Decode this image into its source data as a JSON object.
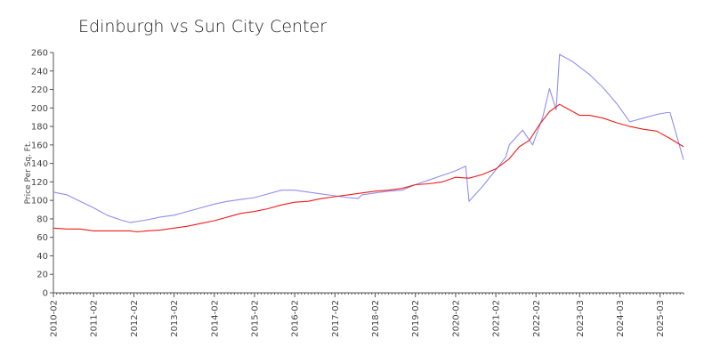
{
  "chart_data": {
    "type": "line",
    "title": "Edinburgh vs Sun City Center",
    "xlabel": "",
    "ylabel": "Price Per Sq. Ft.",
    "ylim": [
      0,
      260
    ],
    "y_ticks": [
      0,
      20,
      40,
      60,
      80,
      100,
      120,
      140,
      160,
      180,
      200,
      220,
      240,
      260
    ],
    "x_tick_labels": [
      "2010-02",
      "2011-02",
      "2012-02",
      "2013-02",
      "2014-02",
      "2015-02",
      "2016-02",
      "2017-02",
      "2018-02",
      "2019-02",
      "2020-02",
      "2021-02",
      "2022-02",
      "2023-03",
      "2024-03",
      "2025-03"
    ],
    "grid": false,
    "legend": "none",
    "series": [
      {
        "color": "#8f8ff0",
        "points": [
          [
            "2010-02",
            109
          ],
          [
            "2010-06",
            106
          ],
          [
            "2010-10",
            99
          ],
          [
            "2011-02",
            92
          ],
          [
            "2011-06",
            84
          ],
          [
            "2011-10",
            79
          ],
          [
            "2012-01",
            76
          ],
          [
            "2012-06",
            79
          ],
          [
            "2012-10",
            82
          ],
          [
            "2013-02",
            84
          ],
          [
            "2013-06",
            88
          ],
          [
            "2013-10",
            92
          ],
          [
            "2014-02",
            96
          ],
          [
            "2014-06",
            99
          ],
          [
            "2014-10",
            101
          ],
          [
            "2015-02",
            103
          ],
          [
            "2015-06",
            107
          ],
          [
            "2015-10",
            111
          ],
          [
            "2016-02",
            111
          ],
          [
            "2016-06",
            109
          ],
          [
            "2016-10",
            107
          ],
          [
            "2017-02",
            105
          ],
          [
            "2017-06",
            103
          ],
          [
            "2017-09",
            102
          ],
          [
            "2017-10",
            106
          ],
          [
            "2018-02",
            108
          ],
          [
            "2018-06",
            110
          ],
          [
            "2018-10",
            111
          ],
          [
            "2019-02",
            117
          ],
          [
            "2019-06",
            122
          ],
          [
            "2019-10",
            127
          ],
          [
            "2020-02",
            132
          ],
          [
            "2020-05",
            137
          ],
          [
            "2020-06",
            99
          ],
          [
            "2020-10",
            115
          ],
          [
            "2021-02",
            133
          ],
          [
            "2021-05",
            147
          ],
          [
            "2021-06",
            160
          ],
          [
            "2021-10",
            176
          ],
          [
            "2022-01",
            160
          ],
          [
            "2022-04",
            190
          ],
          [
            "2022-06",
            221
          ],
          [
            "2022-08",
            198
          ],
          [
            "2022-09",
            258
          ],
          [
            "2023-01",
            250
          ],
          [
            "2023-06",
            236
          ],
          [
            "2023-10",
            222
          ],
          [
            "2024-02",
            205
          ],
          [
            "2024-06",
            185
          ],
          [
            "2024-10",
            189
          ],
          [
            "2025-02",
            193
          ],
          [
            "2025-05",
            195
          ],
          [
            "2025-06",
            195
          ],
          [
            "2025-10",
            144
          ]
        ]
      },
      {
        "color": "#ee1c1c",
        "points": [
          [
            "2010-02",
            70
          ],
          [
            "2010-06",
            69
          ],
          [
            "2010-10",
            69
          ],
          [
            "2011-02",
            67
          ],
          [
            "2011-06",
            67
          ],
          [
            "2011-10",
            67
          ],
          [
            "2012-01",
            67
          ],
          [
            "2012-03",
            66
          ],
          [
            "2012-06",
            67
          ],
          [
            "2012-10",
            68
          ],
          [
            "2013-02",
            70
          ],
          [
            "2013-06",
            72
          ],
          [
            "2013-10",
            75
          ],
          [
            "2014-02",
            78
          ],
          [
            "2014-06",
            82
          ],
          [
            "2014-10",
            86
          ],
          [
            "2015-02",
            88
          ],
          [
            "2015-06",
            91
          ],
          [
            "2015-10",
            95
          ],
          [
            "2016-02",
            98
          ],
          [
            "2016-06",
            99
          ],
          [
            "2016-10",
            102
          ],
          [
            "2017-02",
            104
          ],
          [
            "2017-06",
            106
          ],
          [
            "2017-10",
            108
          ],
          [
            "2018-02",
            110
          ],
          [
            "2018-06",
            111
          ],
          [
            "2018-10",
            113
          ],
          [
            "2019-02",
            117
          ],
          [
            "2019-06",
            118
          ],
          [
            "2019-10",
            120
          ],
          [
            "2020-02",
            125
          ],
          [
            "2020-06",
            124
          ],
          [
            "2020-10",
            128
          ],
          [
            "2021-02",
            134
          ],
          [
            "2021-06",
            145
          ],
          [
            "2021-09",
            158
          ],
          [
            "2021-12",
            165
          ],
          [
            "2022-03",
            182
          ],
          [
            "2022-06",
            196
          ],
          [
            "2022-09",
            204
          ],
          [
            "2022-12",
            198
          ],
          [
            "2023-03",
            192
          ],
          [
            "2023-06",
            192
          ],
          [
            "2023-10",
            189
          ],
          [
            "2024-02",
            184
          ],
          [
            "2024-06",
            180
          ],
          [
            "2024-10",
            177
          ],
          [
            "2025-02",
            175
          ],
          [
            "2025-06",
            167
          ],
          [
            "2025-10",
            158
          ]
        ]
      }
    ]
  }
}
